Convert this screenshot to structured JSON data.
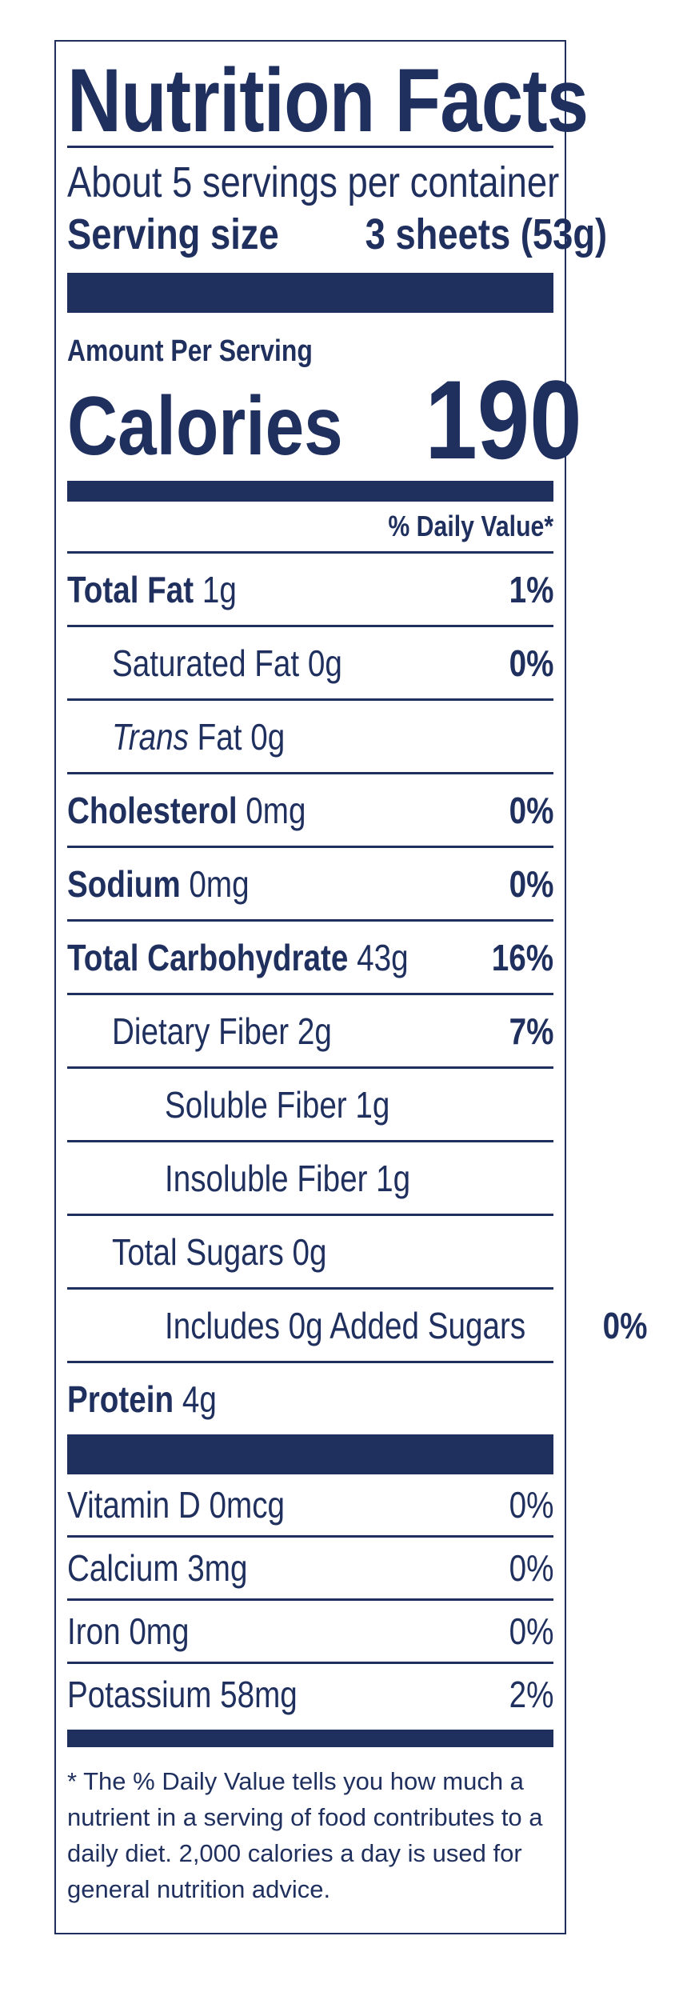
{
  "title": "Nutrition Facts",
  "servings_per_container": "About 5 servings per container",
  "serving_size_label": "Serving size",
  "serving_size_value": "3 sheets (53g)",
  "amount_per_serving": "Amount Per Serving",
  "calories_label": "Calories",
  "calories_value": "190",
  "dv_header": "% Daily Value*",
  "nutrients": [
    {
      "name": "Total Fat",
      "amount": "1g",
      "dv": "1%"
    },
    {
      "name": "Saturated Fat",
      "amount": "0g",
      "dv": "0%"
    },
    {
      "name": "Trans",
      "name_suffix": "Fat",
      "amount": "0g",
      "dv": ""
    },
    {
      "name": "Cholesterol",
      "amount": "0mg",
      "dv": "0%"
    },
    {
      "name": "Sodium",
      "amount": "0mg",
      "dv": "0%"
    },
    {
      "name": "Total Carbohydrate",
      "amount": "43g",
      "dv": "16%"
    },
    {
      "name": "Dietary Fiber",
      "amount": "2g",
      "dv": "7%"
    },
    {
      "name": "Soluble Fiber",
      "amount": "1g",
      "dv": ""
    },
    {
      "name": "Insoluble Fiber",
      "amount": "1g",
      "dv": ""
    },
    {
      "name": "Total Sugars",
      "amount": "0g",
      "dv": ""
    },
    {
      "name": "Includes 0g Added Sugars",
      "amount": "",
      "dv": "0%"
    },
    {
      "name": "Protein",
      "amount": "4g",
      "dv": ""
    }
  ],
  "vitamins": [
    {
      "name": "Vitamin D 0mcg",
      "dv": "0%"
    },
    {
      "name": "Calcium 3mg",
      "dv": "0%"
    },
    {
      "name": "Iron 0mg",
      "dv": "0%"
    },
    {
      "name": "Potassium 58mg",
      "dv": "2%"
    }
  ],
  "footnote": "* The % Daily Value tells you how much a nutrient in a serving of food contributes to a daily diet. 2,000 calories a day is used for general nutrition advice.",
  "colors": {
    "ink": "#1f2f5e",
    "background": "#ffffff"
  }
}
